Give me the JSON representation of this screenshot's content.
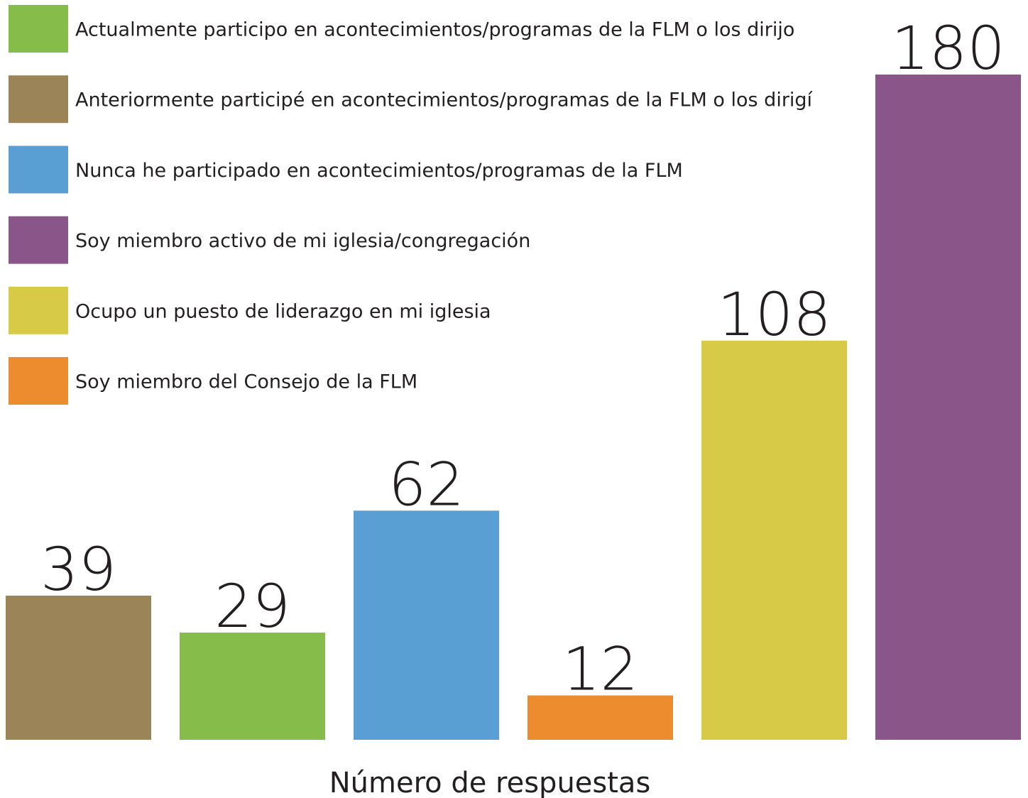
{
  "chart_data": {
    "type": "bar",
    "x_label": "Número de respuestas",
    "categories": [
      null,
      null,
      null,
      null,
      null,
      null
    ],
    "series": [
      {
        "name": "Actualmente participo en acontecimientos/programas de la FLM o los dirijo",
        "color": "#86bc4a",
        "values": [
          null,
          29,
          null,
          null,
          null,
          null
        ]
      },
      {
        "name": "Anteriormente participé en acontecimientos/programas de la FLM o los dirigí",
        "color": "#9b8457",
        "values": [
          39,
          null,
          null,
          null,
          null,
          null
        ]
      },
      {
        "name": "Nunca he participado en acontecimientos/programas de la FLM",
        "color": "#5a9fd4",
        "values": [
          null,
          null,
          62,
          null,
          null,
          null
        ]
      },
      {
        "name": "Soy miembro activo de mi iglesia/congregación",
        "color": "#8a5589",
        "values": [
          null,
          null,
          null,
          null,
          null,
          180
        ]
      },
      {
        "name": "Ocupo un puesto de liderazgo en mi iglesia",
        "color": "#d6ca46",
        "values": [
          null,
          null,
          null,
          null,
          108,
          null
        ]
      },
      {
        "name": "Soy miembro del Consejo de la FLM",
        "color": "#ec8c2e",
        "values": [
          null,
          null,
          null,
          12,
          null,
          null
        ]
      }
    ]
  }
}
